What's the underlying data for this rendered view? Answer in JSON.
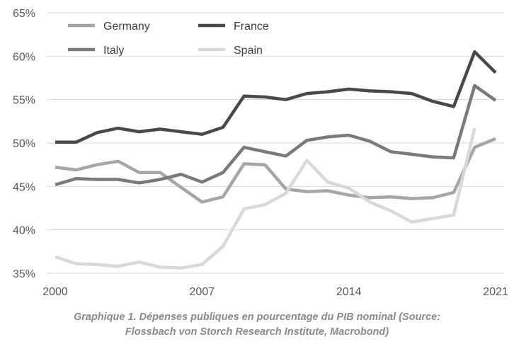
{
  "chart_data": {
    "type": "line",
    "x": [
      2000,
      2001,
      2002,
      2003,
      2004,
      2005,
      2006,
      2007,
      2008,
      2009,
      2010,
      2011,
      2012,
      2013,
      2014,
      2015,
      2016,
      2017,
      2018,
      2019,
      2020,
      2021
    ],
    "xticks": [
      2000,
      2007,
      2014,
      2021
    ],
    "xlim": [
      2000,
      2021
    ],
    "ylim": [
      35,
      65
    ],
    "yticks": [
      35,
      40,
      45,
      50,
      55,
      60,
      65
    ],
    "ytick_suffix": "%",
    "grid": true,
    "legend": "top-left",
    "series": [
      {
        "name": "Germany",
        "color": "#a6a6a6",
        "values": [
          47.2,
          46.9,
          47.5,
          47.9,
          46.6,
          46.6,
          44.9,
          43.2,
          43.8,
          47.6,
          47.5,
          44.7,
          44.4,
          44.5,
          44.0,
          43.7,
          43.8,
          43.6,
          43.7,
          44.3,
          49.5,
          50.5
        ]
      },
      {
        "name": "France",
        "color": "#494949",
        "values": [
          50.1,
          50.1,
          51.2,
          51.7,
          51.3,
          51.6,
          51.3,
          51.0,
          51.8,
          55.4,
          55.3,
          55.0,
          55.7,
          55.9,
          56.2,
          56.0,
          55.9,
          55.7,
          54.8,
          54.2,
          60.5,
          58.1
        ]
      },
      {
        "name": "Italy",
        "color": "#7a7a7a",
        "values": [
          45.2,
          45.9,
          45.8,
          45.8,
          45.4,
          45.8,
          46.4,
          45.5,
          46.6,
          49.5,
          49.0,
          48.5,
          50.3,
          50.7,
          50.9,
          50.2,
          49.0,
          48.7,
          48.4,
          48.3,
          56.6,
          54.9
        ]
      },
      {
        "name": "Spain",
        "color": "#d9d9d9",
        "values": [
          36.9,
          36.1,
          36.0,
          35.8,
          36.3,
          35.7,
          35.6,
          36.0,
          38.1,
          42.4,
          42.9,
          44.2,
          48.0,
          45.5,
          44.8,
          43.2,
          42.2,
          40.9,
          41.3,
          41.7,
          51.7,
          null
        ]
      }
    ],
    "caption_line1": "Graphique 1. Dépenses publiques en pourcentage du PIB nominal (Source:",
    "caption_line2": "Flossbach von Storch Research Institute, Macrobond)"
  }
}
